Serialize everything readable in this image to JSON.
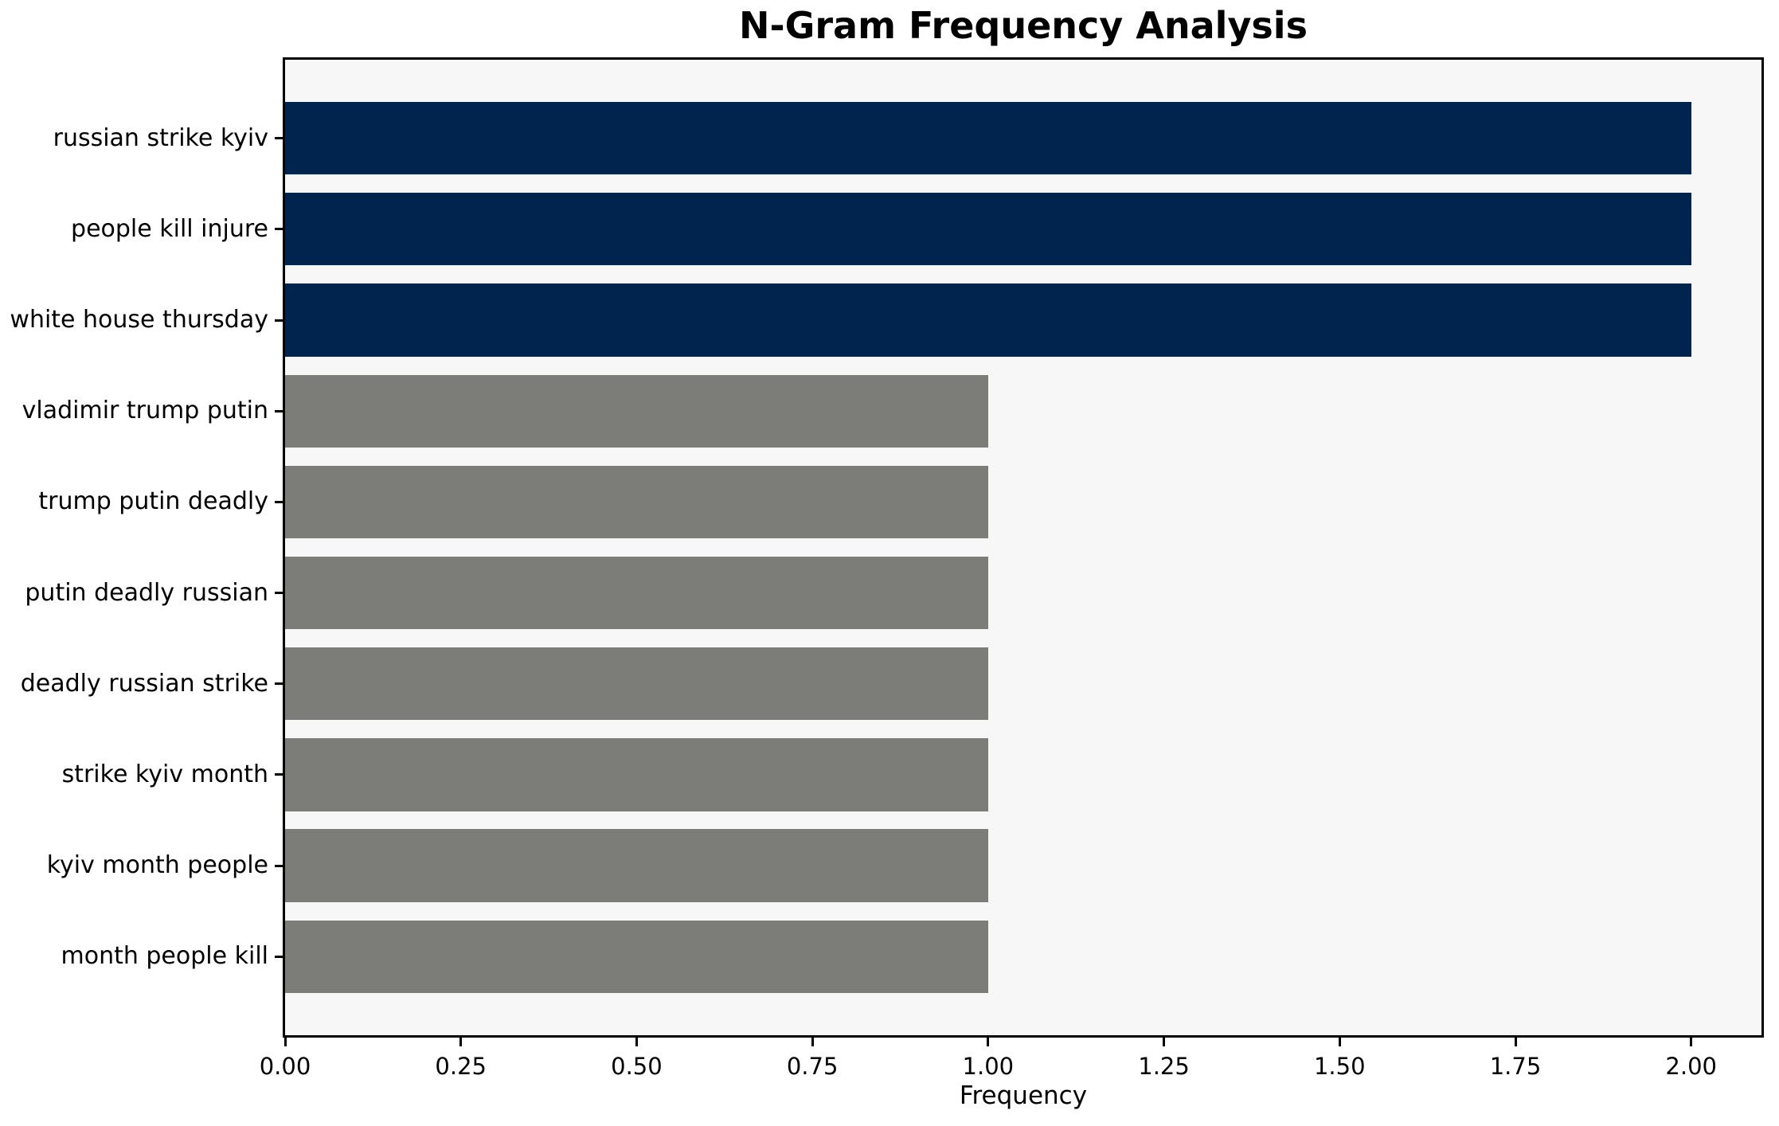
{
  "chart_data": {
    "type": "bar",
    "orientation": "horizontal",
    "title": "N-Gram Frequency Analysis",
    "xlabel": "Frequency",
    "ylabel": "",
    "categories": [
      "russian strike kyiv",
      "people kill injure",
      "white house thursday",
      "vladimir trump putin",
      "trump putin deadly",
      "putin deadly russian",
      "deadly russian strike",
      "strike kyiv month",
      "kyiv month people",
      "month people kill"
    ],
    "values": [
      2,
      2,
      2,
      1,
      1,
      1,
      1,
      1,
      1,
      1
    ],
    "bar_colors": [
      "#01244e",
      "#01244e",
      "#01244e",
      "#7c7c79",
      "#7c7c79",
      "#7c7c79",
      "#7c7c79",
      "#7c7c79",
      "#7c7c79",
      "#7c7c79"
    ],
    "xlim": [
      0,
      2.1
    ],
    "xticks": [
      0,
      0.25,
      0.5,
      0.75,
      1.0,
      1.25,
      1.5,
      1.75,
      2.0
    ],
    "xtick_labels": [
      "0.00",
      "0.25",
      "0.50",
      "0.75",
      "1.00",
      "1.25",
      "1.50",
      "1.75",
      "2.00"
    ],
    "grid": false,
    "legend": null,
    "colors": {
      "highlight_bar": "#01244e",
      "default_bar": "#7c7c79",
      "plot_background": "#f7f7f7",
      "figure_background": "#ffffff",
      "spine": "#000000",
      "text": "#000000"
    }
  }
}
